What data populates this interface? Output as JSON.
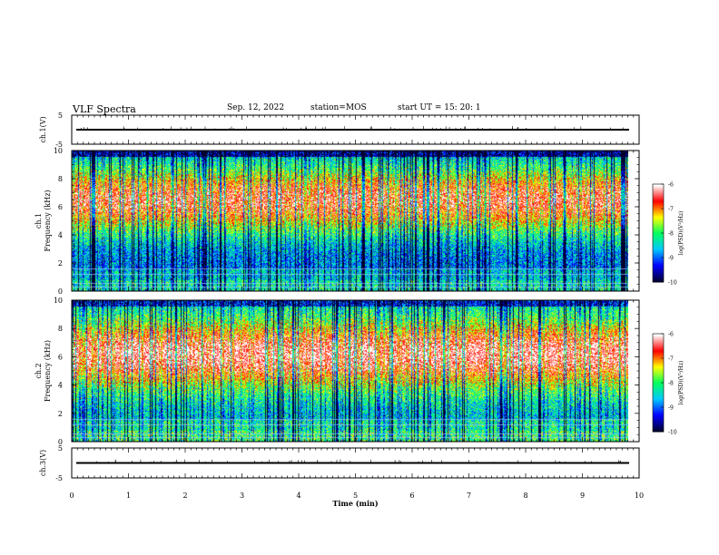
{
  "header": {
    "title": "VLF Spectra",
    "date": "Sep. 12, 2022",
    "station": "station=MOS",
    "start_ut": "start  UT =   15: 20: 1"
  },
  "chart_data": [
    {
      "type": "line",
      "panel": "ch1-waveform",
      "ylabel": "ch.1(V)",
      "ylim": [
        -5,
        5
      ],
      "yticks": [
        "5",
        "-5"
      ],
      "xlim": [
        0,
        10
      ],
      "trace_level": 0,
      "grid": false
    },
    {
      "type": "heatmap",
      "panel": "ch1-spectrogram",
      "ylabel": "ch.1\nFrequency (kHz)",
      "ylim": [
        0,
        10
      ],
      "yticks": [
        "0",
        "2",
        "4",
        "6",
        "8",
        "10"
      ],
      "xlim": [
        0,
        10
      ],
      "data_extent_min": 9.8,
      "band_center_khz": 6.5,
      "colorbar": {
        "label": "log(PSD)(V²/Hz)",
        "range": [
          -10,
          -6
        ],
        "ticks": [
          "-6",
          "-7",
          "-8",
          "-9",
          "-10"
        ]
      }
    },
    {
      "type": "heatmap",
      "panel": "ch2-spectrogram",
      "ylabel": "ch.2\nFrequency (kHz)",
      "ylim": [
        0,
        10
      ],
      "yticks": [
        "0",
        "2",
        "4",
        "6",
        "8",
        "10"
      ],
      "xlim": [
        0,
        10
      ],
      "data_extent_min": 9.8,
      "band_center_khz": 6.2,
      "colorbar": {
        "label": "log(PSD)(V²/Hz)",
        "range": [
          -10,
          -6
        ],
        "ticks": [
          "-6",
          "-7",
          "-8",
          "-9",
          "-10"
        ]
      }
    },
    {
      "type": "line",
      "panel": "ch3-waveform",
      "ylabel": "ch.3(V)",
      "ylim": [
        -5,
        5
      ],
      "yticks": [
        "5",
        "-5"
      ],
      "xlim": [
        0,
        10
      ],
      "trace_level": 0,
      "grid": false
    }
  ],
  "xaxis": {
    "label": "Time (min)",
    "ticks": [
      "0",
      "1",
      "2",
      "3",
      "4",
      "5",
      "6",
      "7",
      "8",
      "9",
      "10"
    ]
  },
  "colors": {
    "colormap": [
      "#000030",
      "#0000ff",
      "#00c8ff",
      "#00ff60",
      "#ffff00",
      "#ff0000",
      "#ffffff"
    ]
  }
}
